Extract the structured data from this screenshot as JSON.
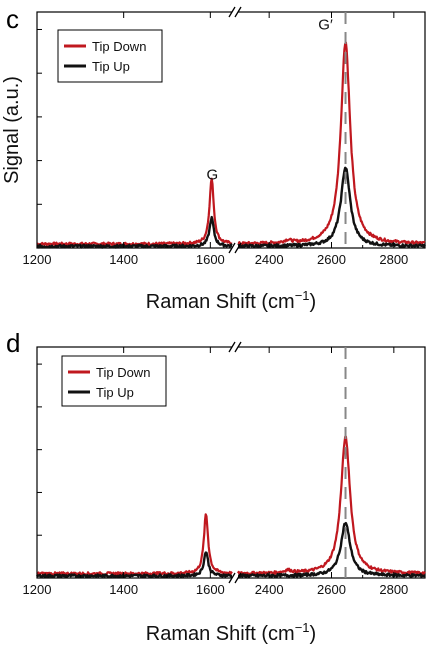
{
  "colors": {
    "tip_down": "#c0181f",
    "tip_up": "#111111",
    "dashed_line": "#888888"
  },
  "chart_data": [
    {
      "panel": "c",
      "type": "line",
      "xlabel": "Raman Shift (cm",
      "xlabel_sup": "−1",
      "xlabel_end": ")",
      "ylabel": "Signal (a.u.)",
      "x_segments": [
        [
          1200,
          1650
        ],
        [
          2300,
          2900
        ]
      ],
      "x_ticks": [
        1200,
        1400,
        1600,
        2400,
        2600,
        2800
      ],
      "y_ticks_count": 5,
      "ylim": [
        0,
        1.05
      ],
      "dashed_x": 2645,
      "legend": {
        "position": "top-left",
        "entries": [
          "Tip Down",
          "Tip Up"
        ]
      },
      "annotations": [
        {
          "text": "G",
          "x": 1600
        },
        {
          "text": "G′",
          "x": 2645
        }
      ],
      "series": [
        {
          "name": "Tip Down",
          "color_key": "tip_down",
          "baseline": 0.018,
          "peaks": [
            {
              "x": 1603,
              "h": 0.29,
              "w": 6
            },
            {
              "x": 2645,
              "h": 0.9,
              "w": 18
            },
            {
              "x": 2460,
              "h": 0.012,
              "w": 14
            }
          ]
        },
        {
          "name": "Tip Up",
          "color_key": "tip_up",
          "baseline": 0.008,
          "peaks": [
            {
              "x": 1603,
              "h": 0.125,
              "w": 6
            },
            {
              "x": 2645,
              "h": 0.35,
              "w": 18
            }
          ]
        }
      ]
    },
    {
      "panel": "d",
      "type": "line",
      "xlabel": "Raman Shift (cm",
      "xlabel_sup": "−1",
      "xlabel_end": ")",
      "ylabel": "",
      "x_segments": [
        [
          1200,
          1650
        ],
        [
          2300,
          2900
        ]
      ],
      "x_ticks": [
        1200,
        1400,
        1600,
        2400,
        2600,
        2800
      ],
      "y_ticks_count": 5,
      "ylim": [
        0,
        1.05
      ],
      "dashed_x": 2645,
      "legend": {
        "position": "top-left",
        "entries": [
          "Tip Down",
          "Tip Up"
        ]
      },
      "annotations": [],
      "series": [
        {
          "name": "Tip Down",
          "color_key": "tip_down",
          "baseline": 0.02,
          "peaks": [
            {
              "x": 1590,
              "h": 0.27,
              "w": 6
            },
            {
              "x": 2645,
              "h": 0.62,
              "w": 18
            },
            {
              "x": 2460,
              "h": 0.012,
              "w": 14
            }
          ]
        },
        {
          "name": "Tip Up",
          "color_key": "tip_up",
          "baseline": 0.01,
          "peaks": [
            {
              "x": 1590,
              "h": 0.11,
              "w": 6
            },
            {
              "x": 2645,
              "h": 0.24,
              "w": 18
            }
          ]
        }
      ]
    }
  ]
}
